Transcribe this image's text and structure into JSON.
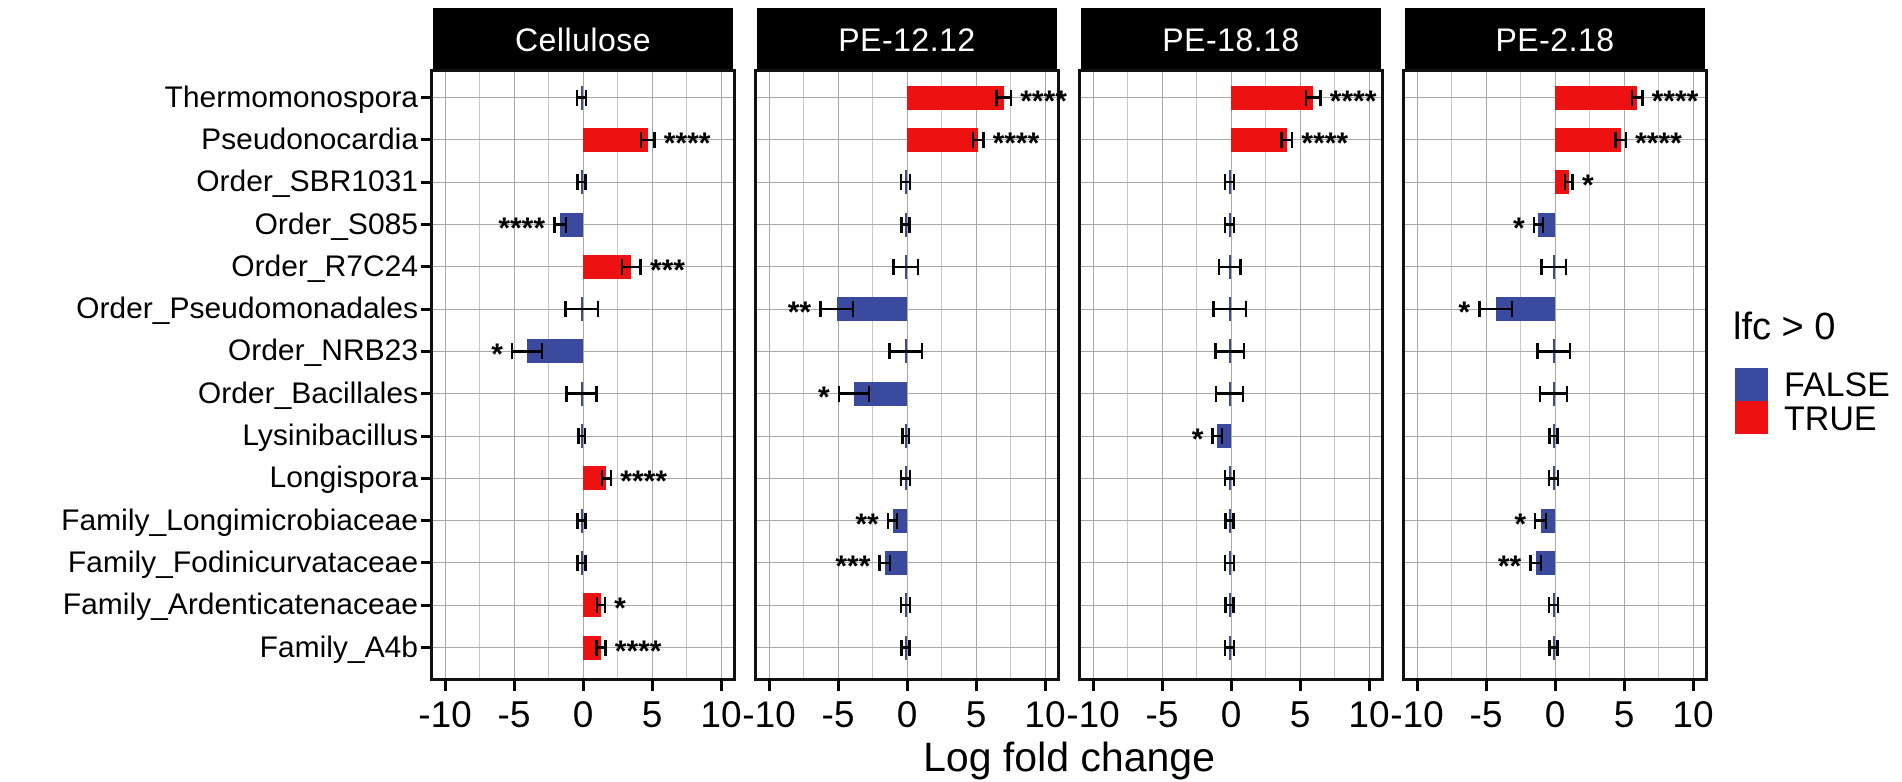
{
  "chart_data": {
    "type": "bar",
    "orientation": "horizontal",
    "title": "",
    "xlabel": "Log fold change",
    "ylabel": "",
    "xlim": [
      -10.8,
      10.8
    ],
    "xticks": [
      -10,
      -5,
      0,
      5,
      10
    ],
    "grid": "on",
    "legend_position": "right",
    "facets": [
      "Cellulose",
      "PE-12.12",
      "PE-18.18",
      "PE-2.18"
    ],
    "categories": [
      "Thermomonospora",
      "Pseudonocardia",
      "Order_SBR1031",
      "Order_S085",
      "Order_R7C24",
      "Order_Pseudomonadales",
      "Order_NRB23",
      "Order_Bacillales",
      "Lysinibacillus",
      "Longispora",
      "Family_Longimicrobiaceae",
      "Family_Fodinicurvataceae",
      "Family_Ardenticatenaceae",
      "Family_A4b"
    ],
    "series": [
      {
        "facet": "Cellulose",
        "lfc": [
          -0.1,
          4.7,
          -0.1,
          -1.65,
          3.5,
          -0.1,
          -4.05,
          -0.1,
          -0.1,
          1.7,
          -0.1,
          -0.1,
          1.3,
          1.3
        ],
        "se": [
          0.35,
          0.5,
          0.3,
          0.45,
          0.7,
          1.2,
          1.1,
          1.1,
          0.25,
          0.35,
          0.3,
          0.3,
          0.3,
          0.35
        ],
        "sig": [
          "",
          "****",
          "",
          "****",
          "***",
          "",
          "*",
          "",
          "",
          "****",
          "",
          "",
          "*",
          "****"
        ]
      },
      {
        "facet": "PE-12.12",
        "lfc": [
          7.0,
          5.15,
          -0.1,
          -0.1,
          -0.1,
          -5.1,
          -0.1,
          -3.85,
          -0.1,
          -0.1,
          -1.05,
          -1.6,
          -0.1,
          -0.1
        ],
        "se": [
          0.55,
          0.4,
          0.35,
          0.3,
          0.9,
          1.2,
          1.2,
          1.1,
          0.25,
          0.35,
          0.35,
          0.4,
          0.35,
          0.3
        ],
        "sig": [
          "****",
          "****",
          "",
          "",
          "",
          "**",
          "",
          "*",
          "",
          "",
          "**",
          "***",
          "",
          ""
        ]
      },
      {
        "facet": "PE-18.18",
        "lfc": [
          5.95,
          4.05,
          -0.1,
          -0.1,
          -0.1,
          -0.1,
          -0.1,
          -0.1,
          -1.0,
          -0.1,
          -0.1,
          -0.1,
          -0.1,
          -0.1
        ],
        "se": [
          0.55,
          0.4,
          0.35,
          0.35,
          0.8,
          1.2,
          1.05,
          1.0,
          0.35,
          0.35,
          0.3,
          0.35,
          0.3,
          0.35
        ],
        "sig": [
          "****",
          "****",
          "",
          "",
          "",
          "",
          "",
          "",
          "*",
          "",
          "",
          "",
          "",
          ""
        ]
      },
      {
        "facet": "PE-2.18",
        "lfc": [
          5.95,
          4.75,
          1.0,
          -1.2,
          -0.1,
          -4.3,
          -0.1,
          -0.1,
          -0.1,
          -0.1,
          -1.05,
          -1.4,
          -0.1,
          -0.1
        ],
        "se": [
          0.4,
          0.4,
          0.3,
          0.35,
          0.9,
          1.2,
          1.2,
          1.0,
          0.3,
          0.35,
          0.4,
          0.4,
          0.35,
          0.3
        ],
        "sig": [
          "****",
          "****",
          "*",
          "*",
          "",
          "*",
          "",
          "",
          "",
          "",
          "*",
          "**",
          "",
          ""
        ]
      }
    ]
  },
  "legend": {
    "title": "lfc > 0",
    "items": [
      {
        "label": "FALSE",
        "color": "#3a4a9e"
      },
      {
        "label": "TRUE",
        "color": "#ee1111"
      }
    ]
  },
  "style": {
    "grid_major_color": "#a9a9a9",
    "grid_minor_color": "#c6c6c6",
    "strip_bg": "#000000",
    "strip_text": "#ffffff"
  }
}
